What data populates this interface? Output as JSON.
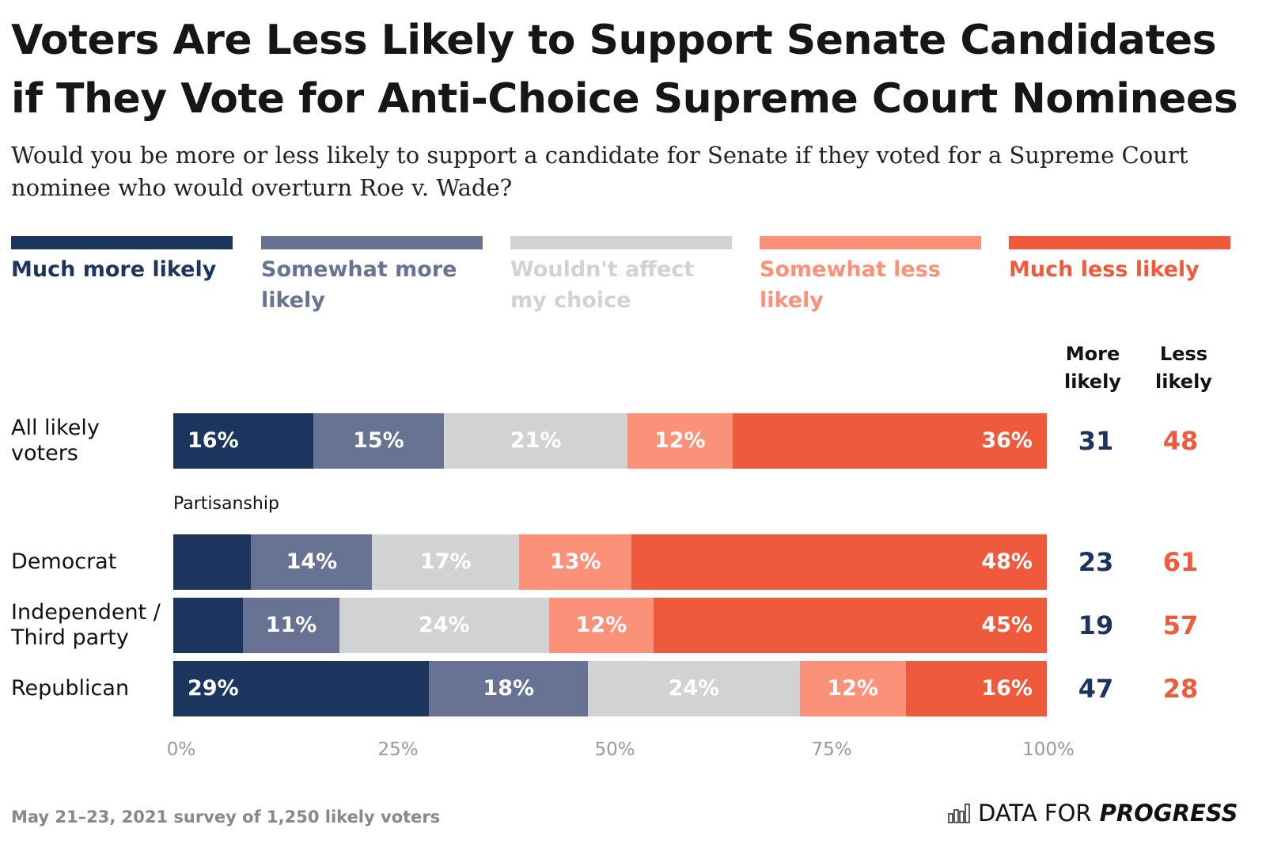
{
  "chart_data": {
    "type": "bar",
    "orientation": "horizontal",
    "stacked": true,
    "title": "Voters Are Less Likely to Support Senate Candidates if They Vote for Anti-Choice Supreme Court Nominees",
    "subtitle": "Would you be more or less likely to support a candidate for Senate if they voted for a Supreme Court nominee who would overturn Roe v. Wade?",
    "xlim": [
      0,
      100
    ],
    "x_ticks": [
      "0%",
      "25%",
      "50%",
      "75%",
      "100%"
    ],
    "legend_position": "top",
    "series": [
      {
        "name": "Much more likely",
        "color": "#1c355e"
      },
      {
        "name": "Somewhat more likely",
        "color": "#687394"
      },
      {
        "name": "Wouldn't affect my choice",
        "color": "#d1d2d4"
      },
      {
        "name": "Somewhat less likely",
        "color": "#fb9178"
      },
      {
        "name": "Much less likely",
        "color": "#f05a3c"
      }
    ],
    "group_label": "Partisanship",
    "rows": [
      {
        "label": "All likely voters",
        "values": [
          16,
          15,
          21,
          12,
          36
        ],
        "labels": [
          "16%",
          "15%",
          "21%",
          "12%",
          "36%"
        ],
        "more": "31",
        "less": "48"
      },
      {
        "label": "Democrat",
        "values": [
          9,
          14,
          17,
          13,
          48
        ],
        "labels": [
          "",
          "14%",
          "17%",
          "13%",
          "48%"
        ],
        "more": "23",
        "less": "61"
      },
      {
        "label": "Independent / Third party",
        "values": [
          8,
          11,
          24,
          12,
          45
        ],
        "labels": [
          "",
          "11%",
          "24%",
          "12%",
          "45%"
        ],
        "more": "19",
        "less": "57"
      },
      {
        "label": "Republican",
        "values": [
          29,
          18,
          24,
          12,
          16
        ],
        "labels": [
          "29%",
          "18%",
          "24%",
          "12%",
          "16%"
        ],
        "more": "47",
        "less": "28"
      }
    ],
    "column_headers": {
      "more": "More likely",
      "less": "Less likely"
    },
    "more_color": "#1c355e",
    "less_color": "#f05a3c"
  },
  "footer": {
    "note": "May 21–23, 2021 survey of 1,250 likely voters"
  },
  "logo": {
    "text_light": "DATA FOR",
    "text_bold": "PROGRESS",
    "icon": "bar-chart-icon"
  }
}
